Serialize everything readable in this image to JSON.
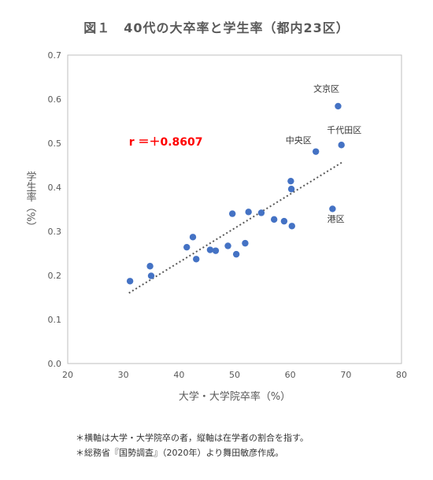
{
  "chart_data": {
    "type": "scatter",
    "title": "図１　40代の大卒率と学生率（都内23区）",
    "xlabel": "大学・大学院卒率（%）",
    "ylabel": "学生率（%）",
    "xlim": [
      20,
      80
    ],
    "ylim": [
      0.0,
      0.7
    ],
    "x_ticks": [
      20,
      30,
      40,
      50,
      60,
      70,
      80
    ],
    "y_ticks": [
      "0.0",
      "0.1",
      "0.2",
      "0.3",
      "0.4",
      "0.5",
      "0.6",
      "0.7"
    ],
    "grid": false,
    "series_color": "#4472C4",
    "trendline_color": "#595959",
    "points": [
      {
        "x": 31.2,
        "y": 0.187
      },
      {
        "x": 34.8,
        "y": 0.221
      },
      {
        "x": 35.0,
        "y": 0.199
      },
      {
        "x": 41.4,
        "y": 0.264
      },
      {
        "x": 42.5,
        "y": 0.287
      },
      {
        "x": 43.1,
        "y": 0.237
      },
      {
        "x": 45.6,
        "y": 0.258
      },
      {
        "x": 46.6,
        "y": 0.256
      },
      {
        "x": 48.8,
        "y": 0.267
      },
      {
        "x": 49.6,
        "y": 0.34
      },
      {
        "x": 50.3,
        "y": 0.248
      },
      {
        "x": 51.9,
        "y": 0.273
      },
      {
        "x": 52.5,
        "y": 0.344
      },
      {
        "x": 54.8,
        "y": 0.342
      },
      {
        "x": 57.1,
        "y": 0.327
      },
      {
        "x": 58.9,
        "y": 0.323
      },
      {
        "x": 60.1,
        "y": 0.414
      },
      {
        "x": 60.2,
        "y": 0.396
      },
      {
        "x": 60.3,
        "y": 0.312
      },
      {
        "x": 64.6,
        "y": 0.481
      },
      {
        "x": 67.6,
        "y": 0.351
      },
      {
        "x": 68.6,
        "y": 0.584
      },
      {
        "x": 69.2,
        "y": 0.496
      }
    ],
    "trendline": {
      "x1": 31.0,
      "y1": 0.16,
      "x2": 69.5,
      "y2": 0.458
    },
    "annotations": [
      {
        "text": "文京区",
        "x": 66.5,
        "y": 0.617
      },
      {
        "text": "千代田区",
        "x": 69.7,
        "y": 0.523
      },
      {
        "text": "中央区",
        "x": 61.5,
        "y": 0.5
      },
      {
        "text": "港区",
        "x": 68.2,
        "y": 0.321
      }
    ],
    "correlation_label": "r ＝＋0.8607",
    "correlation_color": "#FF0000",
    "correlation_pos": {
      "x": 31.0,
      "y": 0.495
    }
  },
  "notes": [
    "＊横軸は大学・大学院卒の者，縦軸は在学者の割合を指す。",
    "＊総務省『国勢調査』（2020年）より舞田敏彦作成。"
  ]
}
